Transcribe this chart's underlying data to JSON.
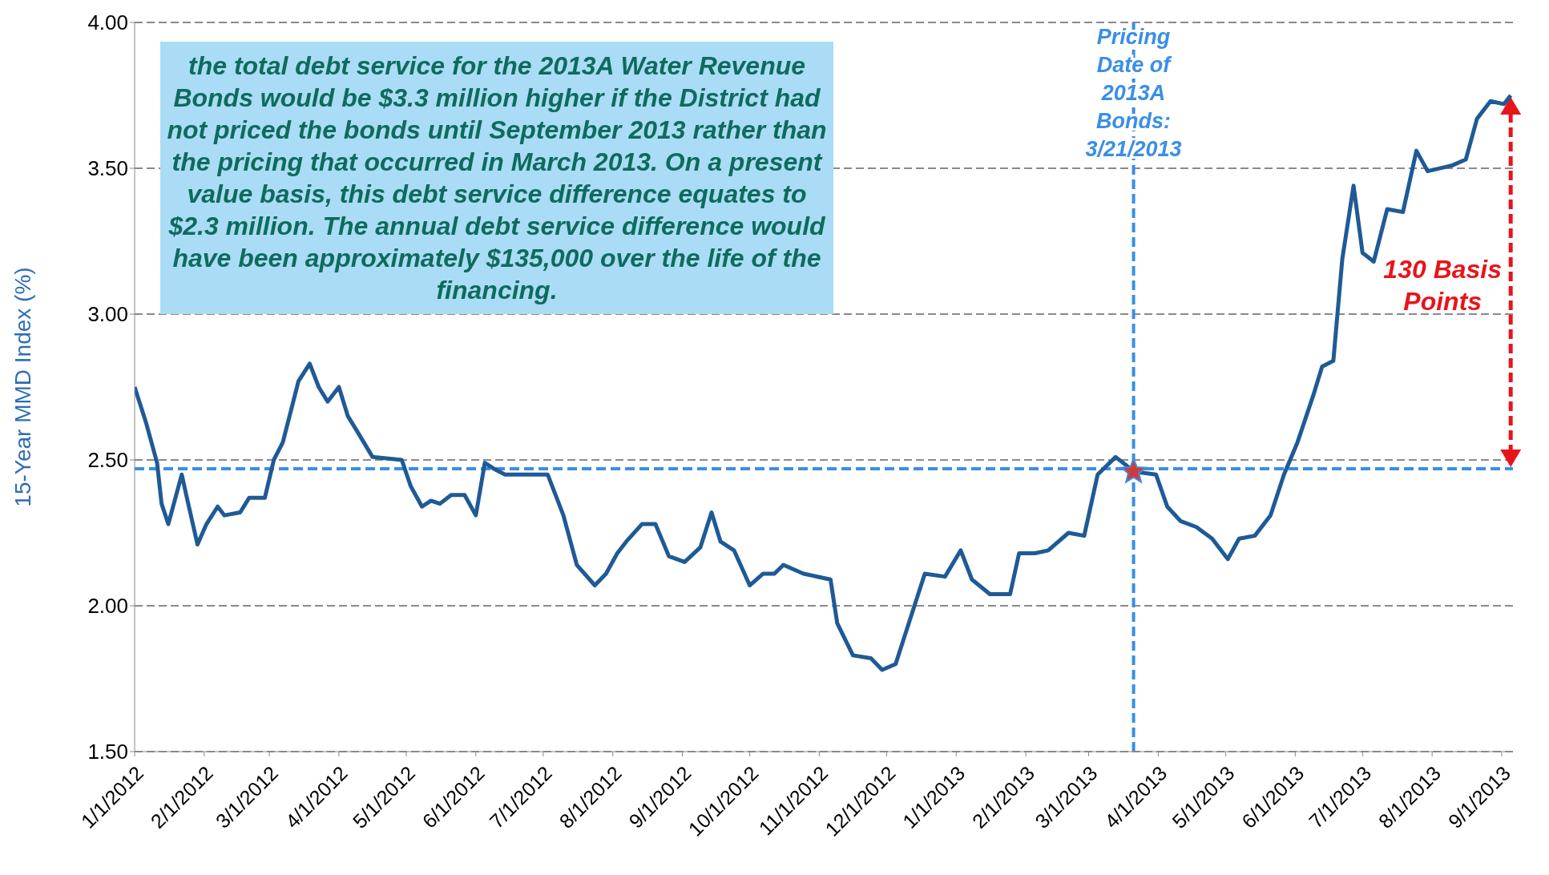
{
  "chart_data": {
    "type": "line",
    "ylabel": "15-Year MMD Index (%)",
    "annotations": [
      "the total debt service for the 2013A Water Revenue Bonds would be $3.3 million higher if the District had not priced the bonds until September 2013 rather than the pricing that occurred in March 2013. On a present value basis, this debt service difference equates to $2.3 million. The annual debt service difference would have been approximately $135,000 over the life of the financing.",
      "130 Basis Points"
    ],
    "series": [
      {
        "color": "#1f5a96",
        "marker": "none",
        "line_style": "solid",
        "x": [
          "2012-01-01",
          "2012-01-06",
          "2012-01-11",
          "2012-01-13",
          "2012-01-16",
          "2012-01-22",
          "2012-01-24",
          "2012-01-29",
          "2012-02-02",
          "2012-02-07",
          "2012-02-10",
          "2012-02-17",
          "2012-02-21",
          "2012-02-28",
          "2012-03-03",
          "2012-03-07",
          "2012-03-14",
          "2012-03-19",
          "2012-03-23",
          "2012-03-27",
          "2012-04-01",
          "2012-04-05",
          "2012-04-09",
          "2012-04-16",
          "2012-04-29",
          "2012-05-03",
          "2012-05-08",
          "2012-05-12",
          "2012-05-16",
          "2012-05-21",
          "2012-05-27",
          "2012-06-01",
          "2012-06-05",
          "2012-06-09",
          "2012-06-14",
          "2012-07-03",
          "2012-07-10",
          "2012-07-16",
          "2012-07-24",
          "2012-07-29",
          "2012-08-03",
          "2012-08-07",
          "2012-08-14",
          "2012-08-20",
          "2012-08-26",
          "2012-09-02",
          "2012-09-09",
          "2012-09-14",
          "2012-09-18",
          "2012-09-24",
          "2012-10-01",
          "2012-10-07",
          "2012-10-12",
          "2012-10-16",
          "2012-10-25",
          "2012-11-06",
          "2012-11-09",
          "2012-11-16",
          "2012-11-24",
          "2012-11-29",
          "2012-12-05",
          "2012-12-18",
          "2012-12-27",
          "2013-01-03",
          "2013-01-08",
          "2013-01-16",
          "2013-01-25",
          "2013-01-29",
          "2013-02-05",
          "2013-02-11",
          "2013-02-20",
          "2013-02-27",
          "2013-03-05",
          "2013-03-13",
          "2013-03-18",
          "2013-03-21",
          "2013-03-31",
          "2013-04-05",
          "2013-04-11",
          "2013-04-18",
          "2013-04-25",
          "2013-05-02",
          "2013-05-07",
          "2013-05-14",
          "2013-05-21",
          "2013-05-27",
          "2013-06-02",
          "2013-06-09",
          "2013-06-13",
          "2013-06-18",
          "2013-06-22",
          "2013-06-27",
          "2013-07-01",
          "2013-07-06",
          "2013-07-12",
          "2013-07-19",
          "2013-07-25",
          "2013-07-30",
          "2013-08-10",
          "2013-08-16",
          "2013-08-21",
          "2013-08-27",
          "2013-09-02",
          "2013-09-05"
        ],
        "values": [
          2.75,
          2.63,
          2.49,
          2.35,
          2.28,
          2.45,
          2.38,
          2.21,
          2.28,
          2.34,
          2.31,
          2.32,
          2.37,
          2.37,
          2.5,
          2.56,
          2.77,
          2.83,
          2.75,
          2.7,
          2.75,
          2.65,
          2.6,
          2.51,
          2.5,
          2.41,
          2.34,
          2.36,
          2.35,
          2.38,
          2.38,
          2.31,
          2.49,
          2.47,
          2.45,
          2.45,
          2.31,
          2.14,
          2.07,
          2.11,
          2.18,
          2.22,
          2.28,
          2.28,
          2.17,
          2.15,
          2.2,
          2.32,
          2.22,
          2.19,
          2.07,
          2.11,
          2.11,
          2.14,
          2.11,
          2.09,
          1.94,
          1.83,
          1.82,
          1.78,
          1.8,
          2.11,
          2.1,
          2.19,
          2.09,
          2.04,
          2.04,
          2.18,
          2.18,
          2.19,
          2.25,
          2.24,
          2.45,
          2.51,
          2.48,
          2.46,
          2.45,
          2.34,
          2.29,
          2.27,
          2.23,
          2.16,
          2.23,
          2.24,
          2.31,
          2.45,
          2.56,
          2.72,
          2.82,
          2.84,
          3.19,
          3.44,
          3.21,
          3.18,
          3.36,
          3.35,
          3.56,
          3.49,
          3.51,
          3.53,
          3.67,
          3.73,
          3.72,
          3.75
        ]
      },
      {
        "type": "scatter",
        "color": "#d03a3a",
        "marker": "star",
        "x": [
          "2013-03-21"
        ],
        "values": [
          2.46
        ]
      }
    ],
    "xlim": [
      "2012-01-01",
      "2013-09-06"
    ],
    "xticks": [
      {
        "value": "2012-01-01",
        "label": "1/1/2012"
      },
      {
        "value": "2012-02-01",
        "label": "2/1/2012"
      },
      {
        "value": "2012-03-01",
        "label": "3/1/2012"
      },
      {
        "value": "2012-04-01",
        "label": "4/1/2012"
      },
      {
        "value": "2012-05-01",
        "label": "5/1/2012"
      },
      {
        "value": "2012-06-01",
        "label": "6/1/2012"
      },
      {
        "value": "2012-07-01",
        "label": "7/1/2012"
      },
      {
        "value": "2012-08-01",
        "label": "8/1/2012"
      },
      {
        "value": "2012-09-01",
        "label": "9/1/2012"
      },
      {
        "value": "2012-10-01",
        "label": "10/1/2012"
      },
      {
        "value": "2012-11-01",
        "label": "11/1/2012"
      },
      {
        "value": "2012-12-01",
        "label": "12/1/2012"
      },
      {
        "value": "2013-01-01",
        "label": "1/1/2013"
      },
      {
        "value": "2013-02-01",
        "label": "2/1/2013"
      },
      {
        "value": "2013-03-01",
        "label": "3/1/2013"
      },
      {
        "value": "2013-04-01",
        "label": "4/1/2013"
      },
      {
        "value": "2013-05-01",
        "label": "5/1/2013"
      },
      {
        "value": "2013-06-01",
        "label": "6/1/2013"
      },
      {
        "value": "2013-07-01",
        "label": "7/1/2013"
      },
      {
        "value": "2013-08-01",
        "label": "8/1/2013"
      },
      {
        "value": "2013-09-01",
        "label": "9/1/2013"
      }
    ],
    "ylim": [
      1.5,
      4
    ],
    "yticks": [
      {
        "value": 1.5,
        "label": "1.50"
      },
      {
        "value": 2,
        "label": "2.00"
      },
      {
        "value": 2.5,
        "label": "2.50"
      },
      {
        "value": 3,
        "label": "3.00"
      },
      {
        "value": 3.5,
        "label": "3.50"
      },
      {
        "value": 4,
        "label": "4.00"
      }
    ],
    "grid": "y",
    "ref_lines": [
      {
        "axis": "y",
        "value": 2.47,
        "color": "#3a8ee6",
        "line_style": "dashed"
      },
      {
        "axis": "x",
        "value": "2013-03-21",
        "label": "Pricing Date of 2013A Bonds: 3/21/2013",
        "color": "#3a8ee6",
        "line_style": "dashed"
      }
    ]
  }
}
